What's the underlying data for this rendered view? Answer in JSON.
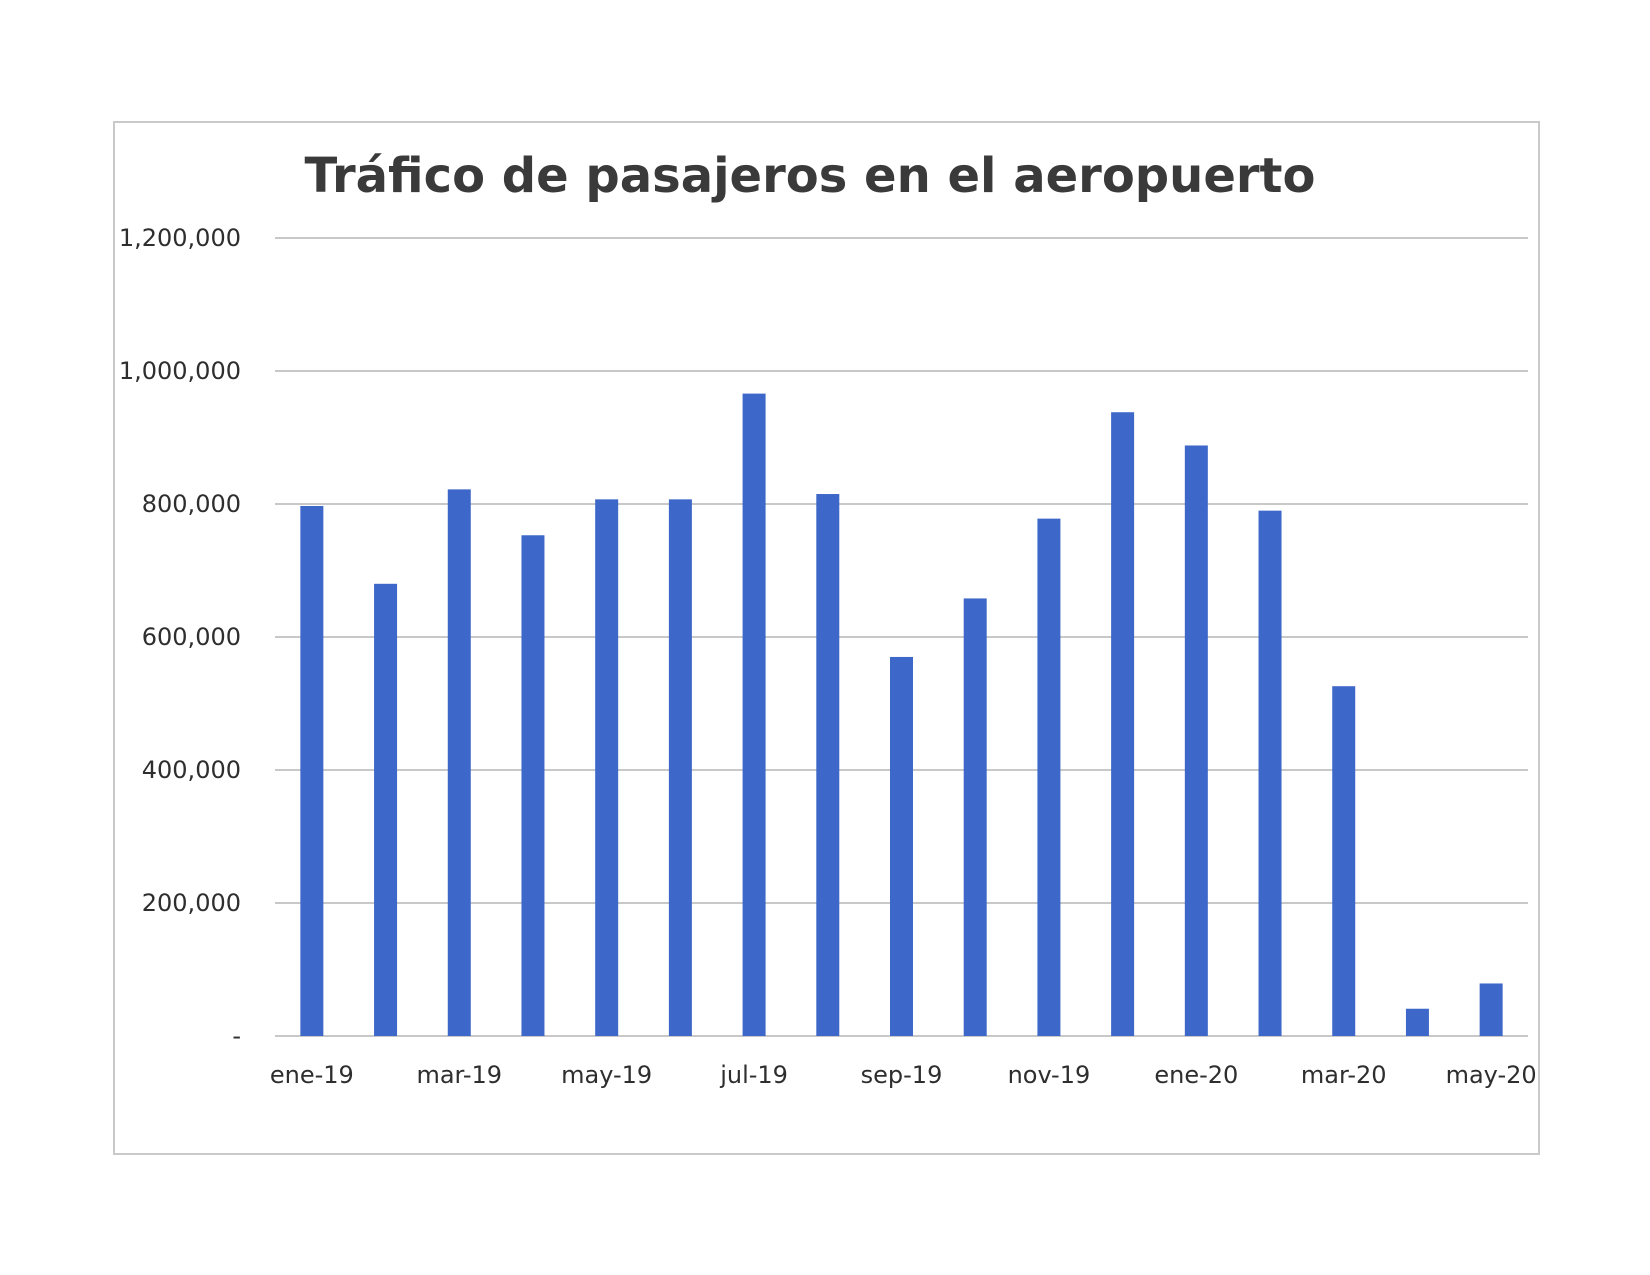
{
  "chart_data": {
    "type": "bar",
    "title": "Tráfico de pasajeros en el aeropuerto",
    "xlabel": "",
    "ylabel": "",
    "categories": [
      "ene-19",
      "feb-19",
      "mar-19",
      "abr-19",
      "may-19",
      "jun-19",
      "jul-19",
      "ago-19",
      "sep-19",
      "oct-19",
      "nov-19",
      "dic-19",
      "ene-20",
      "feb-20",
      "mar-20",
      "abr-20",
      "may-20"
    ],
    "category_labels": [
      "ene-19",
      "",
      "mar-19",
      "",
      "may-19",
      "",
      "jul-19",
      "",
      "sep-19",
      "",
      "nov-19",
      "",
      "ene-20",
      "",
      "mar-20",
      "",
      "may-20"
    ],
    "values": [
      797000,
      680000,
      822000,
      753000,
      807000,
      807000,
      966000,
      815000,
      570000,
      658000,
      778000,
      938000,
      888000,
      790000,
      526000,
      41000,
      79000
    ],
    "ylim": [
      0,
      1200000
    ],
    "yticks": [
      0,
      200000,
      400000,
      600000,
      800000,
      1000000,
      1200000
    ],
    "ytick_labels": [
      "-",
      "200,000",
      "400,000",
      "600,000",
      "800,000",
      "1,000,000",
      "1,200,000"
    ],
    "bar_color": "#3d67c8",
    "grid": true,
    "legend": "none"
  }
}
